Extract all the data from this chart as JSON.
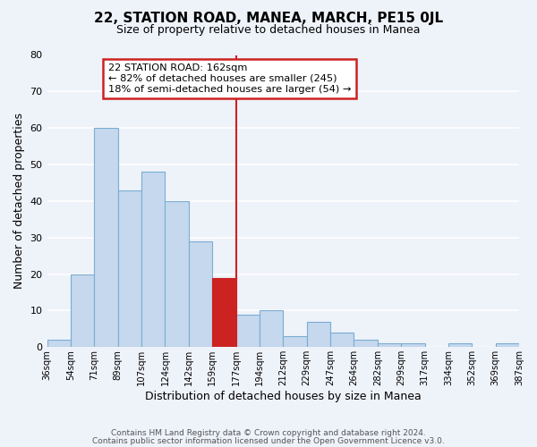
{
  "title": "22, STATION ROAD, MANEA, MARCH, PE15 0JL",
  "subtitle": "Size of property relative to detached houses in Manea",
  "xlabel": "Distribution of detached houses by size in Manea",
  "ylabel": "Number of detached properties",
  "bin_edges": [
    "36sqm",
    "54sqm",
    "71sqm",
    "89sqm",
    "107sqm",
    "124sqm",
    "142sqm",
    "159sqm",
    "177sqm",
    "194sqm",
    "212sqm",
    "229sqm",
    "247sqm",
    "264sqm",
    "282sqm",
    "299sqm",
    "317sqm",
    "334sqm",
    "352sqm",
    "369sqm",
    "387sqm"
  ],
  "bar_values": [
    2,
    20,
    60,
    43,
    48,
    40,
    29,
    19,
    9,
    10,
    3,
    7,
    4,
    2,
    1,
    1,
    0,
    1,
    0,
    1
  ],
  "highlight_bin_index": 7,
  "highlight_color": "#cc2222",
  "bar_color": "#c5d8ed",
  "bar_edge_color": "#7aadd4",
  "background_color": "#eef2f9",
  "annotation_title": "22 STATION ROAD: 162sqm",
  "annotation_line1": "← 82% of detached houses are smaller (245)",
  "annotation_line2": "18% of semi-detached houses are larger (54) →",
  "vline_bin_index": 7,
  "ylim": [
    0,
    80
  ],
  "yticks": [
    0,
    10,
    20,
    30,
    40,
    50,
    60,
    70,
    80
  ],
  "footer_line1": "Contains HM Land Registry data © Crown copyright and database right 2024.",
  "footer_line2": "Contains public sector information licensed under the Open Government Licence v3.0."
}
